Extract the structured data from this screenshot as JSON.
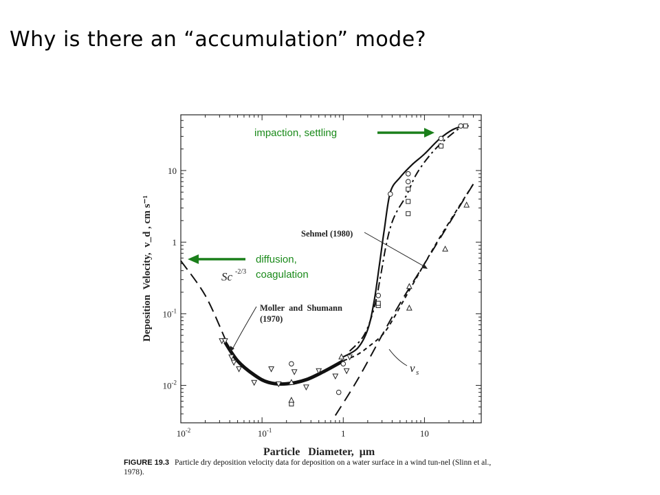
{
  "slide": {
    "title": "Why is there an “accumulation” mode?"
  },
  "annotations": {
    "impaction": "impaction, settling",
    "diffusion": "diffusion,",
    "coagulation": "coagulation",
    "arrow_color": "#1a7f1a"
  },
  "caption": {
    "label": "FIGURE 19.3",
    "text": "Particle dry deposition velocity data for deposition on a water surface in a wind tun-nel (Slinn et al., 1978)."
  },
  "chart_data": {
    "type": "scatter",
    "xscale": "log",
    "yscale": "log",
    "xlim": [
      0.01,
      50
    ],
    "ylim": [
      0.003,
      60
    ],
    "xlabel": "Particle   Diameter,  μm",
    "ylabel": "Deposition  Velocity,  v_d , cm s⁻¹",
    "xticks": [
      {
        "value": 0.01,
        "base": "10",
        "exp": "-2"
      },
      {
        "value": 0.1,
        "base": "10",
        "exp": "-1"
      },
      {
        "value": 1,
        "base": "1",
        "exp": ""
      },
      {
        "value": 10,
        "base": "10",
        "exp": ""
      }
    ],
    "yticks": [
      {
        "value": 0.01,
        "base": "10",
        "exp": "-2"
      },
      {
        "value": 0.1,
        "base": "10",
        "exp": "-1"
      },
      {
        "value": 1,
        "base": "1",
        "exp": ""
      },
      {
        "value": 10,
        "base": "10",
        "exp": ""
      }
    ],
    "labels": {
      "sc": "Sc",
      "sc_exp": "-2/3",
      "moller1": "Moller  and  Shumann",
      "moller2": "(1970)",
      "sehmel": "Sehmel (1980)",
      "vs": "v",
      "vs_sub": "s"
    },
    "series": [
      {
        "style": "solid",
        "points": [
          [
            1.0,
            0.025
          ],
          [
            1.5,
            0.033
          ],
          [
            2.0,
            0.06
          ],
          [
            2.4,
            0.15
          ],
          [
            2.8,
            0.5
          ],
          [
            3.2,
            1.5
          ],
          [
            3.8,
            5
          ],
          [
            5,
            8
          ],
          [
            7,
            12
          ],
          [
            10,
            17
          ],
          [
            15,
            27
          ],
          [
            22,
            37
          ],
          [
            30,
            42
          ]
        ]
      },
      {
        "style": "thick",
        "points": [
          [
            0.035,
            0.04
          ],
          [
            0.05,
            0.022
          ],
          [
            0.08,
            0.014
          ],
          [
            0.12,
            0.011
          ],
          [
            0.2,
            0.0105
          ],
          [
            0.35,
            0.012
          ],
          [
            0.6,
            0.016
          ],
          [
            1.0,
            0.022
          ]
        ]
      },
      {
        "style": "longdash",
        "points": [
          [
            0.01,
            0.55
          ],
          [
            0.02,
            0.18
          ],
          [
            0.035,
            0.045
          ]
        ]
      },
      {
        "style": "dashdot",
        "points": [
          [
            1.2,
            0.03
          ],
          [
            1.8,
            0.05
          ],
          [
            2.4,
            0.12
          ],
          [
            2.9,
            0.35
          ],
          [
            3.3,
            0.8
          ],
          [
            3.8,
            1.6
          ],
          [
            4.5,
            2.6
          ],
          [
            6,
            4.5
          ],
          [
            8,
            9
          ],
          [
            12,
            17
          ],
          [
            18,
            27
          ],
          [
            28,
            40
          ],
          [
            35,
            42
          ]
        ]
      },
      {
        "style": "shortdash",
        "points": [
          [
            1.0,
            0.022
          ],
          [
            1.5,
            0.027
          ],
          [
            2,
            0.034
          ],
          [
            3,
            0.05
          ],
          [
            4,
            0.08
          ],
          [
            6,
            0.18
          ],
          [
            8,
            0.32
          ],
          [
            10,
            0.5
          ],
          [
            15,
            1.1
          ],
          [
            25,
            2.8
          ],
          [
            40,
            6.5
          ]
        ]
      },
      {
        "style": "vsdash",
        "points": [
          [
            0.8,
            0.0038
          ],
          [
            1.5,
            0.012
          ],
          [
            3,
            0.05
          ],
          [
            5,
            0.14
          ],
          [
            10,
            0.5
          ],
          [
            20,
            1.8
          ],
          [
            40,
            6.5
          ]
        ]
      }
    ],
    "markers": {
      "circles": [
        [
          0.23,
          0.02
        ],
        [
          0.88,
          0.008
        ],
        [
          1.0,
          0.02
        ],
        [
          2.7,
          0.18
        ],
        [
          3.8,
          4.7
        ],
        [
          6.3,
          9
        ],
        [
          6.3,
          7
        ],
        [
          16,
          28
        ],
        [
          28,
          42
        ]
      ],
      "squares": [
        [
          0.23,
          0.0055
        ],
        [
          2.7,
          0.13
        ],
        [
          2.7,
          0.14
        ],
        [
          6.3,
          5.5
        ],
        [
          6.3,
          3.7
        ],
        [
          6.3,
          2.5
        ],
        [
          16,
          22
        ],
        [
          32,
          42
        ]
      ],
      "triangles_up": [
        [
          0.23,
          0.0062
        ],
        [
          0.23,
          0.011
        ],
        [
          0.95,
          0.025
        ],
        [
          6.5,
          0.24
        ],
        [
          6.5,
          0.12
        ],
        [
          18,
          0.8
        ],
        [
          33,
          3.3
        ]
      ],
      "triangles_down": [
        [
          0.032,
          0.042
        ],
        [
          0.035,
          0.042
        ],
        [
          0.042,
          0.025
        ],
        [
          0.045,
          0.021
        ],
        [
          0.052,
          0.017
        ],
        [
          0.08,
          0.011
        ],
        [
          0.13,
          0.017
        ],
        [
          0.16,
          0.0105
        ],
        [
          0.25,
          0.0155
        ],
        [
          0.35,
          0.0095
        ],
        [
          0.5,
          0.016
        ],
        [
          0.8,
          0.0135
        ],
        [
          1.1,
          0.016
        ],
        [
          1.2,
          0.025
        ]
      ]
    }
  }
}
